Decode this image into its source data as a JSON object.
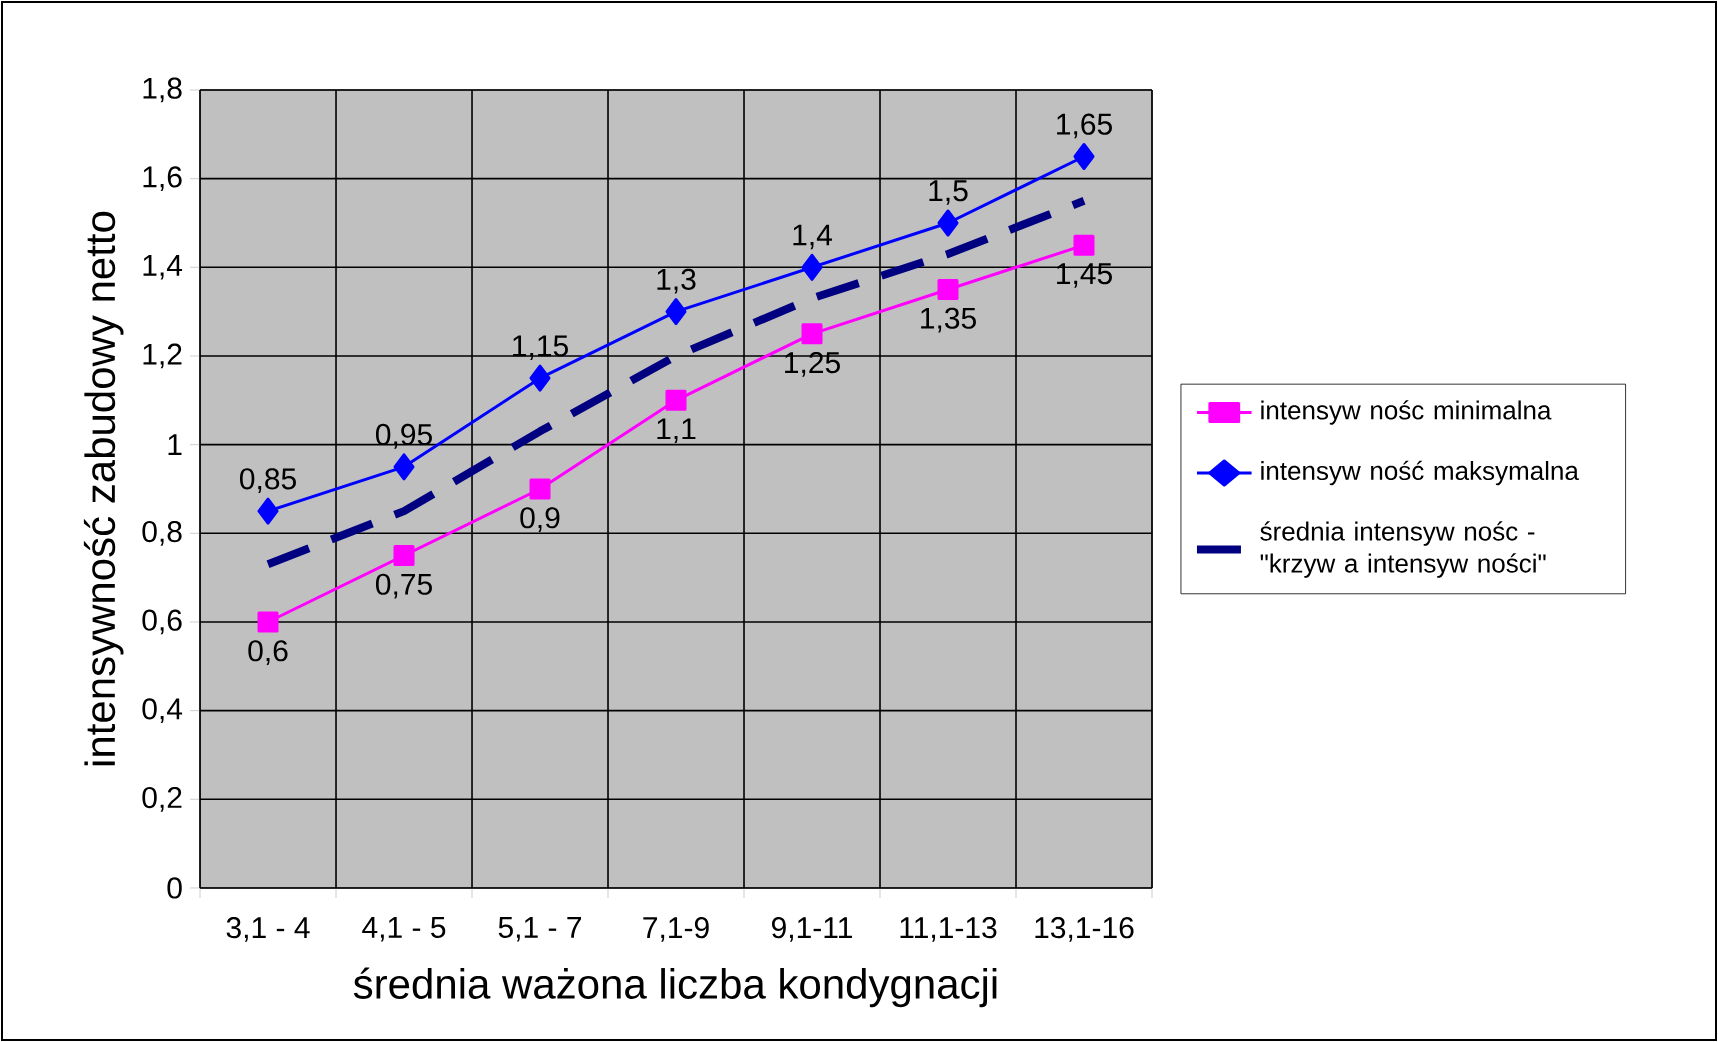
{
  "chart_data": {
    "type": "line",
    "xlabel": "średnia ważona liczba kondygnacji",
    "ylabel": "intensywność zabudowy netto",
    "categories": [
      "3,1 - 4",
      "4,1 - 5",
      "5,1 - 7",
      "7,1-9",
      "9,1-11",
      "11,1-13",
      "13,1-16"
    ],
    "series": [
      {
        "name": "intensyw nośc minimalna",
        "color": "#ff00ff",
        "marker": "square",
        "values": [
          0.6,
          0.75,
          0.9,
          1.1,
          1.25,
          1.35,
          1.45
        ],
        "value_labels": [
          "0,6",
          "0,75",
          "0,9",
          "1,1",
          "1,25",
          "1,35",
          "1,45"
        ]
      },
      {
        "name": "intensyw ność maksymalna",
        "color": "#0000ff",
        "marker": "diamond",
        "values": [
          0.85,
          0.95,
          1.15,
          1.3,
          1.4,
          1.5,
          1.65
        ],
        "value_labels": [
          "0,85",
          "0,95",
          "1,15",
          "1,3",
          "1,4",
          "1,5",
          "1,65"
        ]
      },
      {
        "name": "średnia intensyw nośc - \"krzyw a intensyw ności\"",
        "color": "#000080",
        "marker": "none",
        "line_style": "dashed",
        "values": [
          0.73,
          0.85,
          1.03,
          1.2,
          1.33,
          1.43,
          1.55
        ]
      }
    ],
    "ylim": [
      0,
      1.8
    ],
    "yticks": [
      0,
      {
        "value": 0.2,
        "label": "0,2"
      },
      {
        "value": 0.4,
        "label": "0,4"
      },
      {
        "value": 0.6,
        "label": "0,6"
      },
      {
        "value": 0.8,
        "label": "0,8"
      },
      1,
      {
        "value": 1.2,
        "label": "1,2"
      },
      {
        "value": 1.4,
        "label": "1,4"
      },
      {
        "value": 1.6,
        "label": "1,6"
      },
      {
        "value": 1.8,
        "label": "1,8"
      }
    ],
    "grid": true,
    "legend": "right"
  }
}
